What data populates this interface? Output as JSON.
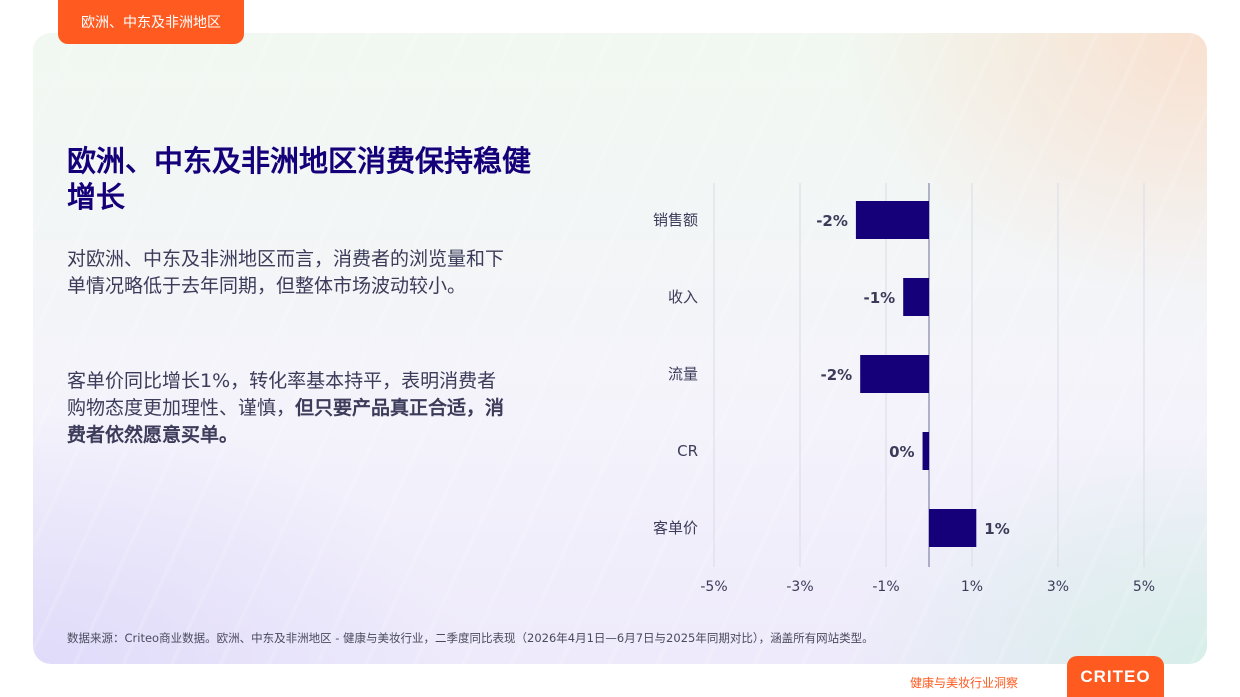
{
  "region_tab": "欧洲、中东及非洲地区",
  "title": "欧洲、中东及非洲地区消费保持稳健增长",
  "paragraph1": "对欧洲、中东及非洲地区而言，消费者的浏览量和下单情况略低于去年同期，但整体市场波动较小。",
  "paragraph2_normal": "客单价同比增长1%，转化率基本持平，表明消费者购物态度更加理性、谨慎，",
  "paragraph2_bold": "但只要产品真正合适，消费者依然愿意买单。",
  "footnote": "数据来源：Criteo商业数据。欧洲、中东及非洲地区 - 健康与美妆行业，二季度同比表现（2026年4月1日—6月7日与2025年同期对比），涵盖所有网站类型。",
  "footer_label": "健康与美妆行业洞察",
  "logo_text": "CRITEO",
  "colors": {
    "accent": "#ff5a1f",
    "title": "#15007a",
    "bar": "#15007a",
    "label": "#3c3c5a"
  },
  "chart_data": {
    "type": "bar",
    "orientation": "horizontal",
    "categories": [
      "销售额",
      "收入",
      "流量",
      "CR",
      "客单价"
    ],
    "values": [
      -1.7,
      -0.6,
      -1.6,
      -0.15,
      1.1
    ],
    "data_labels": [
      "-2%",
      "-1%",
      "-2%",
      "0%",
      "1%"
    ],
    "xlim": [
      -5,
      5
    ],
    "xticks": [
      -5,
      -3,
      -1,
      1,
      3,
      5
    ],
    "xtick_labels": [
      "-5%",
      "-3%",
      "-1%",
      "1%",
      "3%",
      "5%"
    ],
    "grid": true,
    "legend": "none"
  }
}
